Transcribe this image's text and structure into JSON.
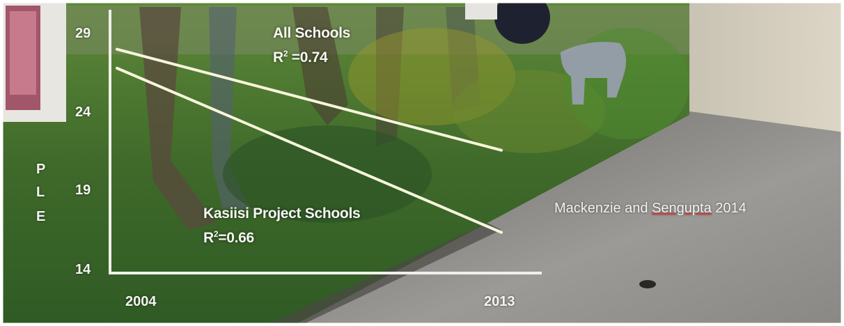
{
  "chart_data": {
    "type": "line",
    "x_ticks": [
      "2004",
      "2013"
    ],
    "y_ticks": [
      "29",
      "24",
      "19",
      "14"
    ],
    "ylabel_letters": [
      "P",
      "L",
      "E"
    ],
    "xlim": [
      2004,
      2013
    ],
    "ylim": [
      14,
      29
    ],
    "series": [
      {
        "name": "All Schools",
        "r2_prefix": "R",
        "r2_sup": "2",
        "r2_suffix": " =0.74",
        "x": [
          2004,
          2013
        ],
        "y": [
          28.0,
          21.6
        ],
        "color": "#f7f5dc"
      },
      {
        "name": "Kasiisi Project Schools",
        "r2_prefix": "R",
        "r2_sup": "2",
        "r2_suffix": "=0.66",
        "x": [
          2004,
          2013
        ],
        "y": [
          26.8,
          16.4
        ],
        "color": "#f7f5dc"
      }
    ],
    "grid": false,
    "axis_color": "#f0f0ea"
  },
  "credit": {
    "before": "Mackenzie and ",
    "underlined": "Sengupta",
    "after": "  2014"
  }
}
